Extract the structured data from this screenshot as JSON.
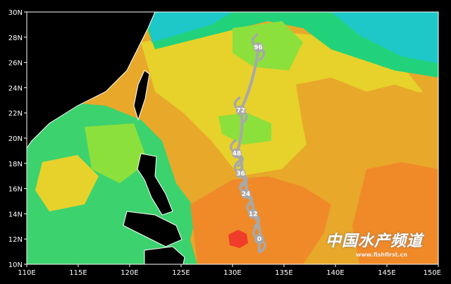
{
  "map": {
    "lat_labels": [
      "30N",
      "28N",
      "26N",
      "24N",
      "22N",
      "20N",
      "18N",
      "16N",
      "14N",
      "12N",
      "10N"
    ],
    "lon_labels": [
      "110E",
      "115E",
      "120E",
      "125E",
      "130E",
      "135E",
      "140E",
      "145E",
      "150E"
    ],
    "extent": {
      "lon": [
        110,
        150
      ],
      "lat": [
        10,
        30
      ]
    },
    "colors": {
      "teal": "#1ec8c8",
      "green": "#22d27a",
      "light_green": "#8ce03c",
      "yellow": "#e6d22a",
      "dark_yellow": "#e8a82a",
      "orange": "#f08a28",
      "red": "#f03c2a",
      "land": "#000000",
      "track": "#a8a8a8"
    },
    "track": [
      {
        "label": "0",
        "lon": 132.6,
        "lat": 12.0
      },
      {
        "label": "12",
        "lon": 132.0,
        "lat": 14.0
      },
      {
        "label": "24",
        "lon": 131.3,
        "lat": 15.6
      },
      {
        "label": "36",
        "lon": 130.8,
        "lat": 17.2
      },
      {
        "label": "48",
        "lon": 130.4,
        "lat": 18.8
      },
      {
        "label": "72",
        "lon": 130.8,
        "lat": 22.2
      },
      {
        "label": "96",
        "lon": 132.5,
        "lat": 27.2
      }
    ]
  },
  "watermark": {
    "text": "中国水产频道",
    "url": "www.fishfirst.cn"
  }
}
